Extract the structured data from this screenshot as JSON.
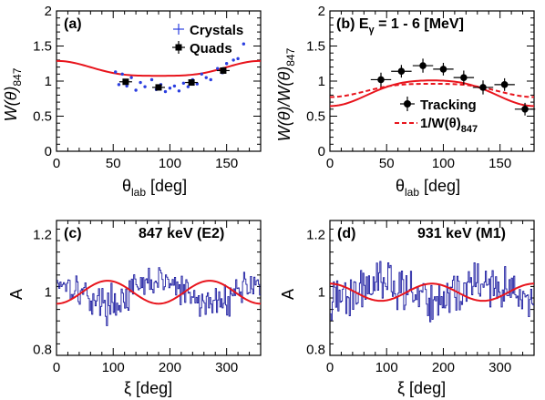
{
  "colors": {
    "fit": "#e8141c",
    "crystals": "#2a3ee0",
    "quads": "#000000",
    "spectrum": "#1a1aa0",
    "frame": "#000000"
  },
  "chart_data": [
    {
      "type": "scatter",
      "title": "(a)",
      "xlabel": "θ",
      "xlabel_sub": "lab",
      "xlabel_unit": " [deg]",
      "ylabel": "W(θ)",
      "ylabel_sub": "847",
      "xlim": [
        0,
        180
      ],
      "ylim": [
        0,
        2
      ],
      "xticks": [
        0,
        50,
        100,
        150
      ],
      "yticks": [
        0,
        0.5,
        1,
        1.5,
        2
      ],
      "legend_placement": "top-right",
      "series": [
        {
          "name": "Crystals",
          "kind": "points",
          "x": [
            52,
            55,
            58,
            62,
            66,
            70,
            74,
            78,
            84,
            88,
            92,
            96,
            100,
            104,
            108,
            112,
            116,
            120,
            124,
            128,
            132,
            136,
            142,
            146,
            150,
            156,
            160,
            165
          ],
          "y": [
            1.13,
            0.95,
            1.1,
            0.93,
            1.05,
            0.87,
            0.98,
            0.92,
            1.02,
            0.88,
            0.95,
            0.85,
            0.9,
            0.93,
            0.86,
            0.97,
            0.92,
            1.02,
            0.96,
            1.1,
            1.05,
            1.02,
            1.18,
            1.12,
            1.25,
            1.3,
            1.32,
            1.53
          ]
        },
        {
          "name": "Quads",
          "kind": "errorpoints",
          "x": [
            61,
            90,
            119,
            147
          ],
          "y": [
            0.99,
            0.91,
            0.98,
            1.15
          ],
          "yerr": [
            0.04,
            0.04,
            0.04,
            0.05
          ]
        },
        {
          "name": "fit",
          "kind": "curve",
          "a0": 1.12,
          "a2": 0.11,
          "a4": 0.04
        }
      ]
    },
    {
      "type": "scatter",
      "title": "(b) E",
      "title_sub": "γ",
      "title_tail": " = 1 - 6 [MeV]",
      "xlabel": "θ",
      "xlabel_sub": "lab",
      "xlabel_unit": " [deg]",
      "ylabel": "W(θ)/W(θ)",
      "ylabel_sub": "847",
      "xlim": [
        0,
        180
      ],
      "ylim": [
        0,
        2
      ],
      "xticks": [
        0,
        50,
        100,
        150
      ],
      "yticks": [
        0,
        0.5,
        1,
        1.5,
        2
      ],
      "legend_placement": "right",
      "series": [
        {
          "name": "Tracking",
          "kind": "errorpoints",
          "x": [
            45,
            63,
            82,
            100,
            118,
            135,
            154,
            172
          ],
          "y": [
            1.02,
            1.14,
            1.22,
            1.17,
            1.05,
            0.91,
            0.95,
            0.6
          ],
          "xerr": [
            9,
            9,
            9,
            9,
            9,
            9,
            9,
            9
          ],
          "yerr": [
            0.1,
            0.09,
            0.1,
            0.09,
            0.1,
            0.1,
            0.09,
            0.09
          ]
        },
        {
          "name": "fit",
          "kind": "curve",
          "a0": 0.92,
          "a2": -0.24,
          "a4": -0.06
        },
        {
          "name": "1/W(θ)",
          "name_sub": "847",
          "kind": "dashed-curve",
          "a0": 0.92,
          "a2": -0.12,
          "a4": -0.04
        }
      ]
    },
    {
      "type": "line",
      "title": "(c)",
      "annotation": "847 keV (E2)",
      "xlabel": "ξ [deg]",
      "ylabel": "A",
      "xlim": [
        0,
        360
      ],
      "ylim": [
        0.78,
        1.25
      ],
      "xticks": [
        0,
        100,
        200,
        300
      ],
      "yticks": [
        0.8,
        1,
        1.2
      ],
      "spectrum": {
        "n_bins": 180,
        "mean": 1.0,
        "amplitude": 0.04,
        "phase_deg": 0,
        "noise": 0.04,
        "seed": 17
      },
      "fit": {
        "mean": 1.0,
        "amplitude": 0.04,
        "phase_deg": 0,
        "period_deg": 180
      }
    },
    {
      "type": "line",
      "title": "(d)",
      "annotation": "931 keV (M1)",
      "xlabel": "ξ [deg]",
      "ylabel": "A",
      "xlim": [
        0,
        360
      ],
      "ylim": [
        0.78,
        1.25
      ],
      "xticks": [
        0,
        100,
        200,
        300
      ],
      "yticks": [
        0.8,
        1,
        1.2
      ],
      "spectrum": {
        "n_bins": 180,
        "mean": 1.0,
        "amplitude": -0.03,
        "phase_deg": 0,
        "noise": 0.055,
        "seed": 42
      },
      "fit": {
        "mean": 1.0,
        "amplitude": -0.03,
        "phase_deg": 0,
        "period_deg": 180
      }
    }
  ]
}
